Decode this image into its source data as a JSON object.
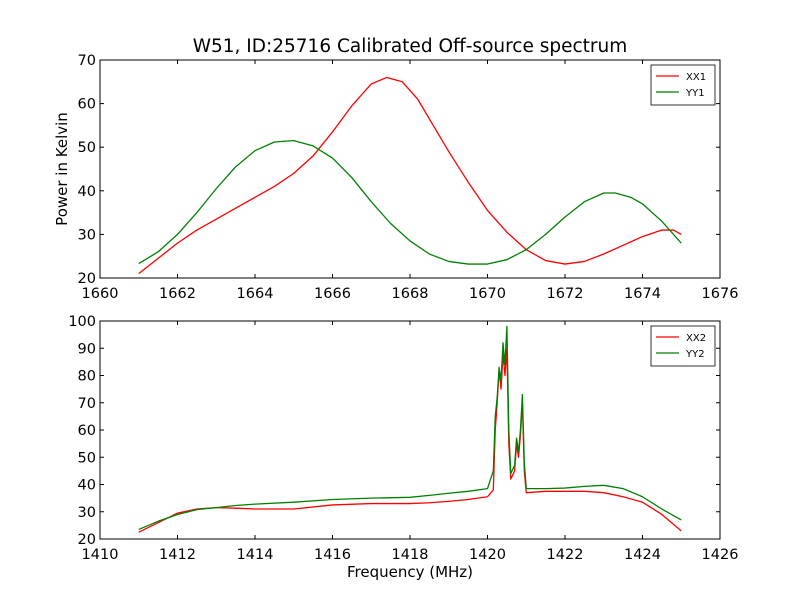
{
  "figure": {
    "title": "W51, ID:25716 Calibrated Off-source spectrum"
  },
  "chart_data": [
    {
      "type": "line",
      "title": "W51, ID:25716 Calibrated Off-source spectrum",
      "xlabel": "",
      "ylabel": "Power in Kelvin",
      "xlim": [
        1660,
        1676
      ],
      "ylim": [
        20,
        70
      ],
      "xticks": [
        1660,
        1662,
        1664,
        1666,
        1668,
        1670,
        1672,
        1674,
        1676
      ],
      "yticks": [
        20,
        30,
        40,
        50,
        60,
        70
      ],
      "grid": false,
      "legend": "top-right",
      "series": [
        {
          "name": "XX1",
          "color": "#ff0000",
          "x": [
            1661,
            1661.5,
            1662,
            1662.5,
            1663,
            1663.5,
            1664,
            1664.5,
            1665,
            1665.5,
            1666,
            1666.5,
            1667,
            1667.4,
            1667.8,
            1668.2,
            1668.6,
            1669,
            1669.5,
            1670,
            1670.5,
            1671,
            1671.5,
            1672,
            1672.5,
            1673,
            1673.5,
            1674,
            1674.5,
            1674.8,
            1675
          ],
          "y": [
            21,
            24.5,
            28,
            31,
            33.5,
            36,
            38.5,
            41,
            44,
            48,
            53.5,
            59.5,
            64.5,
            66,
            65,
            61,
            55,
            49,
            42,
            35.5,
            30.5,
            26.5,
            24,
            23.2,
            23.8,
            25.5,
            27.5,
            29.5,
            31,
            31,
            30
          ]
        },
        {
          "name": "YY1",
          "color": "#008000",
          "x": [
            1661,
            1661.5,
            1662,
            1662.5,
            1663,
            1663.5,
            1664,
            1664.5,
            1665,
            1665.5,
            1666,
            1666.5,
            1667,
            1667.5,
            1668,
            1668.5,
            1669,
            1669.5,
            1670,
            1670.5,
            1671,
            1671.5,
            1672,
            1672.5,
            1673,
            1673.3,
            1673.7,
            1674,
            1674.5,
            1675
          ],
          "y": [
            23.3,
            26,
            30,
            35,
            40.5,
            45.5,
            49.2,
            51.2,
            51.5,
            50.3,
            47.5,
            43,
            37.5,
            32.5,
            28.5,
            25.5,
            23.8,
            23.2,
            23.2,
            24.2,
            26.5,
            30,
            34,
            37.5,
            39.5,
            39.5,
            38.5,
            37,
            33,
            28
          ]
        }
      ]
    },
    {
      "type": "line",
      "title": "",
      "xlabel": "Frequency (MHz)",
      "ylabel": "",
      "xlim": [
        1410,
        1426
      ],
      "ylim": [
        20,
        100
      ],
      "xticks": [
        1410,
        1412,
        1414,
        1416,
        1418,
        1420,
        1422,
        1424,
        1426
      ],
      "yticks": [
        20,
        30,
        40,
        50,
        60,
        70,
        80,
        90,
        100
      ],
      "grid": false,
      "legend": "top-right",
      "series": [
        {
          "name": "XX2",
          "color": "#ff0000",
          "x": [
            1411,
            1411.5,
            1412,
            1412.5,
            1413,
            1413.5,
            1414,
            1415,
            1416,
            1417,
            1418,
            1418.5,
            1419,
            1419.5,
            1420,
            1420.15,
            1420.2,
            1420.25,
            1420.3,
            1420.35,
            1420.4,
            1420.45,
            1420.5,
            1420.55,
            1420.6,
            1420.7,
            1420.75,
            1420.8,
            1420.85,
            1420.9,
            1420.95,
            1421,
            1421.5,
            1422,
            1422.5,
            1423,
            1423.5,
            1424,
            1424.5,
            1425
          ],
          "y": [
            22.5,
            26,
            29.5,
            31,
            31.5,
            31.3,
            31,
            31,
            32.5,
            33,
            33,
            33.3,
            33.8,
            34.5,
            35.5,
            38,
            60,
            70,
            82,
            75,
            88,
            80,
            90,
            55,
            42,
            45,
            55,
            50,
            58,
            70,
            45,
            37,
            37.5,
            37.5,
            37.5,
            37,
            35.5,
            33.5,
            29,
            23
          ]
        },
        {
          "name": "YY2",
          "color": "#008000",
          "x": [
            1411,
            1411.5,
            1412,
            1412.5,
            1413,
            1413.5,
            1414,
            1415,
            1416,
            1417,
            1418,
            1418.5,
            1419,
            1419.5,
            1420,
            1420.15,
            1420.2,
            1420.25,
            1420.3,
            1420.35,
            1420.4,
            1420.45,
            1420.5,
            1420.55,
            1420.6,
            1420.7,
            1420.75,
            1420.8,
            1420.85,
            1420.9,
            1420.95,
            1421,
            1421.5,
            1422,
            1422.5,
            1423,
            1423.5,
            1424,
            1424.5,
            1425
          ],
          "y": [
            23.5,
            26.5,
            29,
            30.8,
            31.5,
            32.3,
            32.8,
            33.5,
            34.5,
            35,
            35.3,
            36,
            36.8,
            37.5,
            38.5,
            45,
            65,
            72,
            83,
            78,
            92,
            84,
            98,
            60,
            44,
            47,
            57,
            52,
            60,
            73,
            48,
            38.5,
            38.5,
            38.7,
            39.3,
            39.7,
            38.5,
            35.5,
            31,
            27
          ]
        }
      ]
    }
  ]
}
